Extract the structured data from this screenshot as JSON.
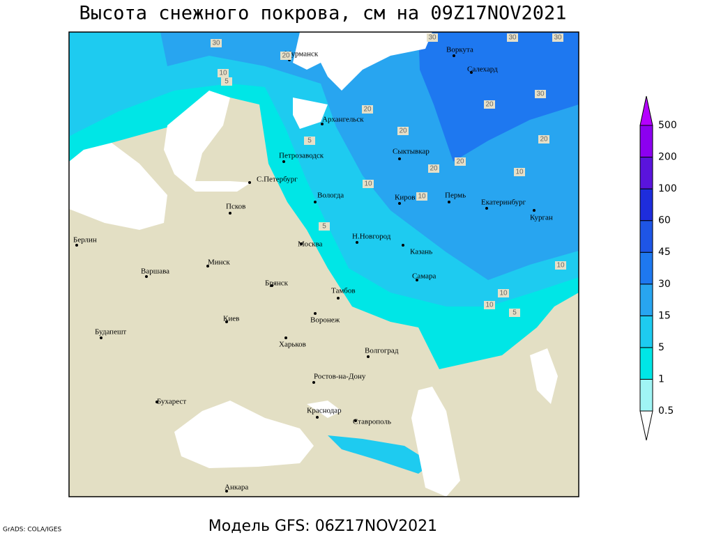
{
  "title": "Высота снежного покрова, см на 09Z17NOV2021",
  "map": {
    "cities": [
      "Мурманск",
      "Воркута",
      "Салехард",
      "Архангельск",
      "Сыктывкар",
      "Петрозаводск",
      "С.Петербург",
      "Вологда",
      "Киров",
      "Пермь",
      "Екатеринбург",
      "Курган",
      "Псков",
      "Н.Новгород",
      "Казань",
      "Москва",
      "Берлин",
      "Минск",
      "Варшава",
      "Самара",
      "Брянск",
      "Тамбов",
      "Киев",
      "Воронеж",
      "Будапешт",
      "Харьков",
      "Волгоград",
      "Ростов-на-Дону",
      "Бухарест",
      "Краснодар",
      "Ставрополь",
      "Анкара"
    ],
    "contour_labels": [
      30,
      20,
      10,
      5,
      30,
      30,
      20,
      20,
      20,
      20,
      20,
      10,
      10,
      10,
      5,
      5,
      30,
      30,
      20,
      10,
      10,
      5,
      10
    ]
  },
  "legend": {
    "levels": [
      0.5,
      1,
      5,
      15,
      30,
      45,
      60,
      100,
      200,
      500
    ],
    "colors": [
      "#ffffff",
      "#a0f5f5",
      "#00e6e6",
      "#1ecbf0",
      "#28a5f0",
      "#1e78f0",
      "#1e55e6",
      "#1e2ddc",
      "#5a14dc",
      "#8c00f0",
      "#b400ff"
    ]
  },
  "footer": {
    "model": "Модель GFS: 06Z17NOV2021",
    "credit": "GrADS: COLA/IGES"
  }
}
